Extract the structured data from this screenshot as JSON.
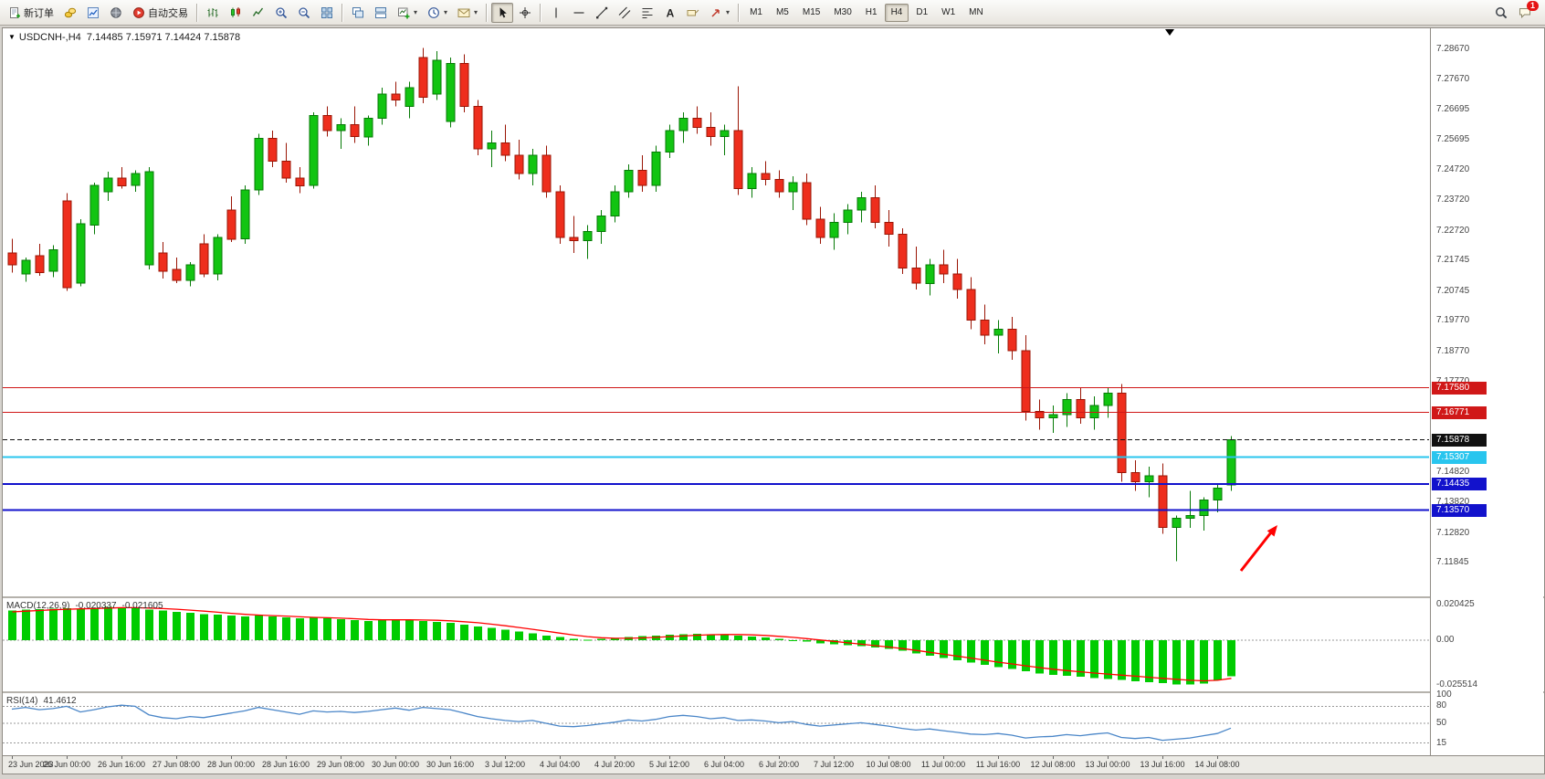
{
  "toolbar": {
    "items": [
      {
        "name": "new-order-button",
        "icon": "doc-plus-icon",
        "label": "新订单"
      },
      {
        "name": "charts-button",
        "icon": "coins-icon"
      },
      {
        "name": "market-watch-button",
        "icon": "chart-blue-icon"
      },
      {
        "name": "community-button",
        "icon": "globe-icon"
      },
      {
        "name": "auto-trading-button",
        "icon": "play-red-icon",
        "label": "自动交易"
      },
      {
        "type": "sep"
      },
      {
        "name": "bar-chart-button",
        "icon": "ohlc-bars-icon"
      },
      {
        "name": "candlestick-chart-button",
        "icon": "candles-icon"
      },
      {
        "name": "line-chart-button",
        "icon": "line-chart-icon"
      },
      {
        "name": "zoom-in-button",
        "icon": "zoom-in-icon"
      },
      {
        "name": "zoom-out-button",
        "icon": "zoom-out-icon"
      },
      {
        "name": "tile-windows-button",
        "icon": "tile-grid-icon"
      },
      {
        "type": "sep"
      },
      {
        "name": "cascade-windows-button",
        "icon": "cascade-icon"
      },
      {
        "name": "tile-horizontal-button",
        "icon": "tile-horizontal-icon"
      },
      {
        "name": "new-chart-button",
        "icon": "new-chart-icon",
        "caret": true
      },
      {
        "name": "periods-button",
        "icon": "clock-icon",
        "caret": true
      },
      {
        "name": "templates-button",
        "icon": "mail-icon",
        "caret": true
      },
      {
        "type": "sep"
      },
      {
        "name": "cursor-button",
        "icon": "cursor-icon",
        "pressed": true
      },
      {
        "name": "crosshair-button",
        "icon": "crosshair-icon"
      },
      {
        "type": "sep"
      },
      {
        "name": "vertical-line-button",
        "icon": "vertical-line-icon"
      },
      {
        "name": "horizontal-line-button",
        "icon": "horizontal-line-icon"
      },
      {
        "name": "trendline-button",
        "icon": "trendline-icon"
      },
      {
        "name": "channel-button",
        "icon": "channel-icon"
      },
      {
        "name": "fibonacci-button",
        "icon": "fibonacci-icon"
      },
      {
        "name": "text-button",
        "icon": "text-icon"
      },
      {
        "name": "text-label-button",
        "icon": "label-icon"
      },
      {
        "name": "arrows-button",
        "icon": "arrow-icon",
        "caret": true
      },
      {
        "type": "sep"
      }
    ],
    "timeframes": [
      "M1",
      "M5",
      "M15",
      "M30",
      "H1",
      "H4",
      "D1",
      "W1",
      "MN"
    ],
    "active_timeframe": "H4",
    "right": [
      {
        "name": "search-button",
        "icon": "magnifier-icon"
      },
      {
        "name": "chat-button",
        "icon": "chat-icon",
        "badge": "1"
      }
    ]
  },
  "chart": {
    "title_symbol": "USDCNH-,H4",
    "title_quotes": "7.14485 7.15971 7.14424 7.15878",
    "price_range": {
      "top": 7.2935,
      "bottom": 7.1075
    },
    "scale_labels": [
      "7.28670",
      "7.27670",
      "7.26695",
      "7.25695",
      "7.24720",
      "7.23720",
      "7.22720",
      "7.21745",
      "7.20745",
      "7.19770",
      "7.18770",
      "7.17770",
      "7.14820",
      "7.13820",
      "7.12820",
      "7.11845"
    ],
    "lines": [
      {
        "price": 7.1758,
        "label": "7.17580",
        "color": "#d01818",
        "width": 1
      },
      {
        "price": 7.16771,
        "label": "7.16771",
        "color": "#d01818",
        "width": 1
      },
      {
        "price": 7.15307,
        "label": "7.15307",
        "color": "#29c5ee",
        "width": 2
      },
      {
        "price": 7.14435,
        "label": "7.14435",
        "color": "#1212cc",
        "width": 2
      },
      {
        "price": 7.1357,
        "label": "7.13570",
        "color": "#1212cc",
        "width": 2
      }
    ],
    "current_price": {
      "value": 7.15878,
      "label": "7.15878",
      "color": "#111111"
    },
    "time_labels": [
      "23 Jun 2023",
      "26 Jun 00:00",
      "26 Jun 16:00",
      "27 Jun 08:00",
      "28 Jun 00:00",
      "28 Jun 16:00",
      "29 Jun 08:00",
      "30 Jun 00:00",
      "30 Jun 16:00",
      "3 Jul 12:00",
      "4 Jul 04:00",
      "4 Jul 20:00",
      "5 Jul 12:00",
      "6 Jul 04:00",
      "6 Jul 20:00",
      "7 Jul 12:00",
      "10 Jul 08:00",
      "11 Jul 00:00",
      "11 Jul 16:00",
      "12 Jul 08:00",
      "13 Jul 00:00",
      "13 Jul 16:00",
      "14 Jul 08:00"
    ],
    "candles": [
      [
        7.22,
        7.2245,
        7.2135,
        7.216
      ],
      [
        7.213,
        7.2185,
        7.2105,
        7.2175
      ],
      [
        7.219,
        7.223,
        7.2125,
        7.2135
      ],
      [
        7.214,
        7.2225,
        7.212,
        7.221
      ],
      [
        7.237,
        7.2395,
        7.2075,
        7.2085
      ],
      [
        7.21,
        7.231,
        7.209,
        7.2295
      ],
      [
        7.229,
        7.243,
        7.226,
        7.242
      ],
      [
        7.24,
        7.2465,
        7.237,
        7.2445
      ],
      [
        7.2445,
        7.248,
        7.241,
        7.242
      ],
      [
        7.242,
        7.247,
        7.24,
        7.246
      ],
      [
        7.216,
        7.248,
        7.2145,
        7.2465
      ],
      [
        7.22,
        7.2235,
        7.2115,
        7.214
      ],
      [
        7.2145,
        7.2185,
        7.21,
        7.211
      ],
      [
        7.211,
        7.217,
        7.209,
        7.216
      ],
      [
        7.223,
        7.226,
        7.212,
        7.213
      ],
      [
        7.213,
        7.226,
        7.211,
        7.225
      ],
      [
        7.234,
        7.2385,
        7.2235,
        7.2245
      ],
      [
        7.2245,
        7.242,
        7.223,
        7.2405
      ],
      [
        7.2405,
        7.259,
        7.239,
        7.2575
      ],
      [
        7.2575,
        7.26,
        7.248,
        7.25
      ],
      [
        7.25,
        7.256,
        7.243,
        7.2445
      ],
      [
        7.2445,
        7.248,
        7.2395,
        7.242
      ],
      [
        7.242,
        7.266,
        7.241,
        7.265
      ],
      [
        7.265,
        7.268,
        7.258,
        7.26
      ],
      [
        7.26,
        7.264,
        7.254,
        7.262
      ],
      [
        7.262,
        7.268,
        7.256,
        7.258
      ],
      [
        7.258,
        7.265,
        7.255,
        7.264
      ],
      [
        7.264,
        7.274,
        7.262,
        7.272
      ],
      [
        7.272,
        7.276,
        7.268,
        7.27
      ],
      [
        7.268,
        7.276,
        7.264,
        7.274
      ],
      [
        7.284,
        7.287,
        7.269,
        7.271
      ],
      [
        7.272,
        7.286,
        7.27,
        7.283
      ],
      [
        7.263,
        7.284,
        7.261,
        7.282
      ],
      [
        7.282,
        7.285,
        7.266,
        7.268
      ],
      [
        7.268,
        7.27,
        7.252,
        7.254
      ],
      [
        7.254,
        7.26,
        7.248,
        7.256
      ],
      [
        7.256,
        7.262,
        7.25,
        7.252
      ],
      [
        7.252,
        7.257,
        7.244,
        7.246
      ],
      [
        7.246,
        7.254,
        7.242,
        7.252
      ],
      [
        7.252,
        7.255,
        7.238,
        7.24
      ],
      [
        7.24,
        7.242,
        7.223,
        7.225
      ],
      [
        7.225,
        7.232,
        7.22,
        7.224
      ],
      [
        7.224,
        7.229,
        7.218,
        7.227
      ],
      [
        7.227,
        7.234,
        7.223,
        7.232
      ],
      [
        7.232,
        7.242,
        7.23,
        7.24
      ],
      [
        7.24,
        7.249,
        7.238,
        7.247
      ],
      [
        7.247,
        7.252,
        7.24,
        7.242
      ],
      [
        7.242,
        7.255,
        7.24,
        7.253
      ],
      [
        7.253,
        7.262,
        7.251,
        7.26
      ],
      [
        7.26,
        7.266,
        7.256,
        7.264
      ],
      [
        7.264,
        7.268,
        7.259,
        7.261
      ],
      [
        7.261,
        7.266,
        7.255,
        7.258
      ],
      [
        7.258,
        7.262,
        7.252,
        7.26
      ],
      [
        7.26,
        7.2745,
        7.239,
        7.241
      ],
      [
        7.241,
        7.248,
        7.238,
        7.246
      ],
      [
        7.246,
        7.25,
        7.242,
        7.244
      ],
      [
        7.244,
        7.247,
        7.238,
        7.24
      ],
      [
        7.24,
        7.245,
        7.234,
        7.243
      ],
      [
        7.243,
        7.246,
        7.229,
        7.231
      ],
      [
        7.231,
        7.235,
        7.223,
        7.225
      ],
      [
        7.225,
        7.233,
        7.221,
        7.23
      ],
      [
        7.23,
        7.236,
        7.226,
        7.234
      ],
      [
        7.234,
        7.24,
        7.23,
        7.238
      ],
      [
        7.238,
        7.242,
        7.228,
        7.23
      ],
      [
        7.23,
        7.234,
        7.222,
        7.226
      ],
      [
        7.226,
        7.228,
        7.213,
        7.215
      ],
      [
        7.215,
        7.222,
        7.208,
        7.21
      ],
      [
        7.21,
        7.218,
        7.206,
        7.216
      ],
      [
        7.216,
        7.221,
        7.21,
        7.213
      ],
      [
        7.213,
        7.218,
        7.205,
        7.208
      ],
      [
        7.208,
        7.212,
        7.195,
        7.198
      ],
      [
        7.198,
        7.203,
        7.19,
        7.193
      ],
      [
        7.193,
        7.198,
        7.187,
        7.195
      ],
      [
        7.195,
        7.199,
        7.185,
        7.188
      ],
      [
        7.188,
        7.193,
        7.165,
        7.168
      ],
      [
        7.168,
        7.172,
        7.162,
        7.166
      ],
      [
        7.166,
        7.17,
        7.161,
        7.167
      ],
      [
        7.167,
        7.174,
        7.163,
        7.172
      ],
      [
        7.172,
        7.176,
        7.164,
        7.166
      ],
      [
        7.166,
        7.173,
        7.162,
        7.17
      ],
      [
        7.17,
        7.176,
        7.166,
        7.174
      ],
      [
        7.174,
        7.177,
        7.145,
        7.148
      ],
      [
        7.148,
        7.152,
        7.142,
        7.145
      ],
      [
        7.145,
        7.15,
        7.14,
        7.147
      ],
      [
        7.147,
        7.151,
        7.128,
        7.13
      ],
      [
        7.13,
        7.134,
        7.119,
        7.133
      ],
      [
        7.133,
        7.142,
        7.13,
        7.134
      ],
      [
        7.134,
        7.14,
        7.129,
        7.139
      ],
      [
        7.139,
        7.144,
        7.135,
        7.143
      ],
      [
        7.144,
        7.16,
        7.142,
        7.1588
      ]
    ]
  },
  "macd": {
    "name": "MACD(12,26,9)",
    "value_main": "-0.020337",
    "value_signal": "-0.021605",
    "range": {
      "top": 0.024,
      "bottom": -0.029
    },
    "scale": [
      {
        "v": 0.020425,
        "t": "0.020425"
      },
      {
        "v": 0,
        "t": "0.00"
      },
      {
        "v": -0.025514,
        "t": "-0.025514"
      }
    ],
    "histogram": [
      0.017,
      0.0174,
      0.0178,
      0.018,
      0.0184,
      0.018,
      0.0186,
      0.019,
      0.0186,
      0.0182,
      0.0176,
      0.017,
      0.0162,
      0.0156,
      0.015,
      0.0146,
      0.014,
      0.0136,
      0.014,
      0.0136,
      0.013,
      0.0126,
      0.013,
      0.0126,
      0.012,
      0.0116,
      0.011,
      0.0116,
      0.012,
      0.0116,
      0.011,
      0.0106,
      0.01,
      0.009,
      0.008,
      0.007,
      0.006,
      0.005,
      0.004,
      0.0028,
      0.0018,
      0.0008,
      0.0004,
      0.0008,
      0.0014,
      0.002,
      0.0024,
      0.0028,
      0.0032,
      0.0036,
      0.0038,
      0.0036,
      0.0032,
      0.0028,
      0.0022,
      0.0016,
      0.0008,
      0.0,
      -0.0008,
      -0.0016,
      -0.0022,
      -0.0028,
      -0.0034,
      -0.004,
      -0.0048,
      -0.006,
      -0.0074,
      -0.0088,
      -0.01,
      -0.0112,
      -0.0126,
      -0.014,
      -0.0152,
      -0.0162,
      -0.0176,
      -0.0188,
      -0.0196,
      -0.0202,
      -0.0208,
      -0.0214,
      -0.022,
      -0.0226,
      -0.0232,
      -0.0238,
      -0.0244,
      -0.025,
      -0.0252,
      -0.0245,
      -0.0228,
      -0.0203
    ],
    "signal": [
      0.0162,
      0.0166,
      0.017,
      0.0174,
      0.0177,
      0.0179,
      0.0181,
      0.0184,
      0.0186,
      0.0186,
      0.0184,
      0.0181,
      0.0177,
      0.0172,
      0.0166,
      0.016,
      0.0154,
      0.0148,
      0.0144,
      0.0141,
      0.0138,
      0.0134,
      0.0131,
      0.0129,
      0.0126,
      0.0123,
      0.0119,
      0.0117,
      0.0117,
      0.0117,
      0.0116,
      0.0114,
      0.0111,
      0.0106,
      0.01,
      0.0092,
      0.0083,
      0.0073,
      0.0063,
      0.0052,
      0.0041,
      0.003,
      0.0021,
      0.0015,
      0.0012,
      0.0012,
      0.0014,
      0.0017,
      0.0021,
      0.0025,
      0.0029,
      0.0032,
      0.0033,
      0.0033,
      0.0031,
      0.0028,
      0.0023,
      0.0017,
      0.001,
      0.0002,
      -0.0006,
      -0.0014,
      -0.0022,
      -0.003,
      -0.0038,
      -0.0047,
      -0.0057,
      -0.0068,
      -0.0079,
      -0.009,
      -0.0101,
      -0.0113,
      -0.0124,
      -0.0134,
      -0.0145,
      -0.0155,
      -0.0164,
      -0.0172,
      -0.0179,
      -0.0186,
      -0.0192,
      -0.0198,
      -0.0204,
      -0.021,
      -0.0216,
      -0.0222,
      -0.0227,
      -0.023,
      -0.0227,
      -0.0216
    ]
  },
  "rsi": {
    "name": "RSI(14)",
    "value": "41.4612",
    "scale": [
      {
        "v": 100,
        "t": "100"
      },
      {
        "v": 80,
        "t": "80"
      },
      {
        "v": 50,
        "t": "50"
      },
      {
        "v": 15,
        "t": "15"
      }
    ],
    "levels": [
      80,
      50,
      15
    ],
    "values": [
      75,
      78,
      74,
      76,
      80,
      70,
      74,
      79,
      82,
      80,
      65,
      60,
      58,
      62,
      60,
      64,
      68,
      72,
      78,
      74,
      70,
      66,
      72,
      70,
      71,
      69,
      71,
      74,
      77,
      73,
      78,
      76,
      74,
      68,
      62,
      58,
      55,
      53,
      55,
      50,
      45,
      44,
      46,
      49,
      52,
      56,
      54,
      57,
      62,
      64,
      62,
      58,
      60,
      55,
      56,
      54,
      51,
      53,
      48,
      45,
      47,
      49,
      51,
      48,
      45,
      41,
      38,
      40,
      37,
      34,
      31,
      30,
      32,
      29,
      24,
      26,
      27,
      30,
      28,
      31,
      33,
      25,
      23,
      25,
      20,
      22,
      24,
      28,
      32,
      41.46
    ]
  },
  "annotation": {
    "type": "arrow",
    "direction": "up-right",
    "color": "#ff0000"
  },
  "colors": {
    "up": "#12c412",
    "up_dark": "#067a06",
    "down": "#ee2e1d",
    "down_dark": "#9a1505",
    "macd_hist": "#00cc00",
    "macd_signal": "#ff0000",
    "rsi_line": "#4a86c8",
    "arrow": "#ff0000"
  }
}
